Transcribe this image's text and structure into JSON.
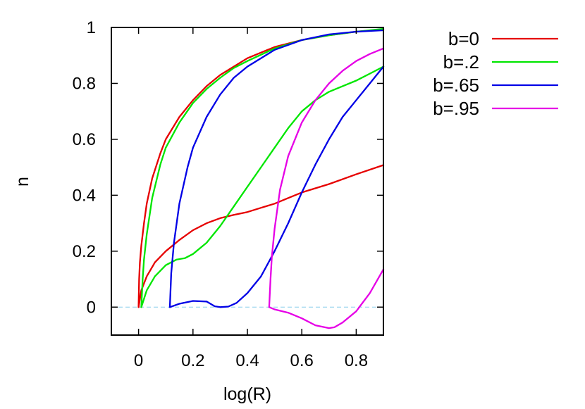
{
  "chart_data": {
    "type": "line",
    "title": "",
    "xlabel": "log(R)",
    "ylabel": "n",
    "xlim": [
      -0.1,
      0.9
    ],
    "ylim": [
      -0.1,
      1.0
    ],
    "xticks": [
      0,
      0.2,
      0.4,
      0.6,
      0.8
    ],
    "xtick_labels": [
      "0",
      "0.2",
      "0.4",
      "0.6",
      "0.8"
    ],
    "yticks": [
      0,
      0.2,
      0.4,
      0.6,
      0.8,
      1.0
    ],
    "ytick_labels": [
      "0",
      "0.2",
      "0.4",
      "0.6",
      "0.8",
      "1"
    ],
    "grid": false,
    "legend_position": "outside-top-right",
    "reference_line": {
      "y": 0,
      "style": "dashed",
      "color": "#87ceeb"
    },
    "series": [
      {
        "name": "b=0",
        "color": "#e60000",
        "curves": [
          [
            [
              0,
              0
            ],
            [
              0.002,
              0.1
            ],
            [
              0.005,
              0.16
            ],
            [
              0.01,
              0.22
            ],
            [
              0.02,
              0.3
            ],
            [
              0.03,
              0.37
            ],
            [
              0.05,
              0.46
            ],
            [
              0.08,
              0.55
            ],
            [
              0.1,
              0.6
            ],
            [
              0.15,
              0.68
            ],
            [
              0.2,
              0.74
            ],
            [
              0.25,
              0.79
            ],
            [
              0.3,
              0.83
            ],
            [
              0.35,
              0.86
            ],
            [
              0.4,
              0.89
            ],
            [
              0.5,
              0.93
            ],
            [
              0.6,
              0.955
            ],
            [
              0.7,
              0.972
            ],
            [
              0.8,
              0.985
            ],
            [
              0.9,
              0.993
            ]
          ],
          [
            [
              0,
              0
            ],
            [
              0.01,
              0.06
            ],
            [
              0.03,
              0.11
            ],
            [
              0.06,
              0.16
            ],
            [
              0.1,
              0.2
            ],
            [
              0.15,
              0.24
            ],
            [
              0.2,
              0.275
            ],
            [
              0.25,
              0.3
            ],
            [
              0.3,
              0.318
            ],
            [
              0.35,
              0.33
            ],
            [
              0.4,
              0.34
            ],
            [
              0.45,
              0.355
            ],
            [
              0.5,
              0.37
            ],
            [
              0.55,
              0.39
            ],
            [
              0.6,
              0.41
            ],
            [
              0.7,
              0.44
            ],
            [
              0.8,
              0.475
            ],
            [
              0.9,
              0.508
            ]
          ]
        ]
      },
      {
        "name": "b=.2",
        "color": "#00e600",
        "curves": [
          [
            [
              0.01,
              0
            ],
            [
              0.015,
              0.1
            ],
            [
              0.02,
              0.17
            ],
            [
              0.03,
              0.26
            ],
            [
              0.05,
              0.39
            ],
            [
              0.08,
              0.51
            ],
            [
              0.1,
              0.57
            ],
            [
              0.15,
              0.66
            ],
            [
              0.2,
              0.73
            ],
            [
              0.25,
              0.78
            ],
            [
              0.3,
              0.82
            ],
            [
              0.35,
              0.855
            ],
            [
              0.4,
              0.88
            ],
            [
              0.5,
              0.925
            ],
            [
              0.6,
              0.955
            ],
            [
              0.7,
              0.972
            ],
            [
              0.8,
              0.985
            ],
            [
              0.9,
              0.995
            ]
          ],
          [
            [
              0.01,
              0
            ],
            [
              0.03,
              0.06
            ],
            [
              0.06,
              0.11
            ],
            [
              0.1,
              0.15
            ],
            [
              0.14,
              0.17
            ],
            [
              0.17,
              0.175
            ],
            [
              0.2,
              0.19
            ],
            [
              0.25,
              0.23
            ],
            [
              0.3,
              0.29
            ],
            [
              0.35,
              0.36
            ],
            [
              0.4,
              0.43
            ],
            [
              0.45,
              0.5
            ],
            [
              0.5,
              0.57
            ],
            [
              0.55,
              0.64
            ],
            [
              0.6,
              0.7
            ],
            [
              0.65,
              0.74
            ],
            [
              0.7,
              0.77
            ],
            [
              0.75,
              0.79
            ],
            [
              0.8,
              0.81
            ],
            [
              0.85,
              0.835
            ],
            [
              0.9,
              0.86
            ]
          ]
        ]
      },
      {
        "name": "b=.65",
        "color": "#0000e6",
        "curves": [
          [
            [
              0.115,
              0
            ],
            [
              0.12,
              0.12
            ],
            [
              0.13,
              0.23
            ],
            [
              0.15,
              0.37
            ],
            [
              0.18,
              0.5
            ],
            [
              0.2,
              0.57
            ],
            [
              0.25,
              0.68
            ],
            [
              0.3,
              0.76
            ],
            [
              0.35,
              0.82
            ],
            [
              0.4,
              0.86
            ],
            [
              0.5,
              0.92
            ],
            [
              0.6,
              0.955
            ],
            [
              0.7,
              0.975
            ],
            [
              0.8,
              0.985
            ],
            [
              0.9,
              0.99
            ]
          ],
          [
            [
              0.115,
              0
            ],
            [
              0.15,
              0.012
            ],
            [
              0.2,
              0.022
            ],
            [
              0.25,
              0.02
            ],
            [
              0.28,
              0.003
            ],
            [
              0.3,
              0
            ],
            [
              0.33,
              0.002
            ],
            [
              0.36,
              0.015
            ],
            [
              0.4,
              0.05
            ],
            [
              0.45,
              0.11
            ],
            [
              0.5,
              0.2
            ],
            [
              0.55,
              0.3
            ],
            [
              0.6,
              0.41
            ],
            [
              0.65,
              0.51
            ],
            [
              0.7,
              0.6
            ],
            [
              0.75,
              0.68
            ],
            [
              0.8,
              0.74
            ],
            [
              0.85,
              0.8
            ],
            [
              0.9,
              0.86
            ]
          ]
        ]
      },
      {
        "name": "b=.95",
        "color": "#e600e6",
        "curves": [
          [
            [
              0.48,
              0
            ],
            [
              0.485,
              0.1
            ],
            [
              0.49,
              0.18
            ],
            [
              0.5,
              0.28
            ],
            [
              0.52,
              0.42
            ],
            [
              0.55,
              0.54
            ],
            [
              0.6,
              0.66
            ],
            [
              0.65,
              0.74
            ],
            [
              0.7,
              0.8
            ],
            [
              0.75,
              0.845
            ],
            [
              0.8,
              0.88
            ],
            [
              0.85,
              0.905
            ],
            [
              0.9,
              0.925
            ]
          ],
          [
            [
              0.48,
              0
            ],
            [
              0.5,
              -0.008
            ],
            [
              0.55,
              -0.02
            ],
            [
              0.6,
              -0.04
            ],
            [
              0.65,
              -0.065
            ],
            [
              0.7,
              -0.075
            ],
            [
              0.72,
              -0.072
            ],
            [
              0.75,
              -0.055
            ],
            [
              0.8,
              -0.015
            ],
            [
              0.85,
              0.05
            ],
            [
              0.9,
              0.135
            ]
          ]
        ]
      }
    ]
  }
}
